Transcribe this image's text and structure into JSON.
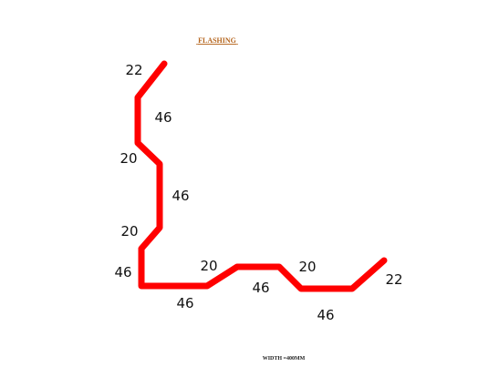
{
  "title": "FLASHING",
  "footer": "WIDTH =400MM",
  "flashing_color": "#ff0000",
  "dimensions": {
    "d1": "22",
    "d2": "46",
    "d3": "20",
    "d4": "46",
    "d5": "20",
    "d6": "46",
    "d7": "46",
    "d8": "20",
    "d9": "46",
    "d10": "20",
    "d11": "46",
    "d12": "22"
  }
}
